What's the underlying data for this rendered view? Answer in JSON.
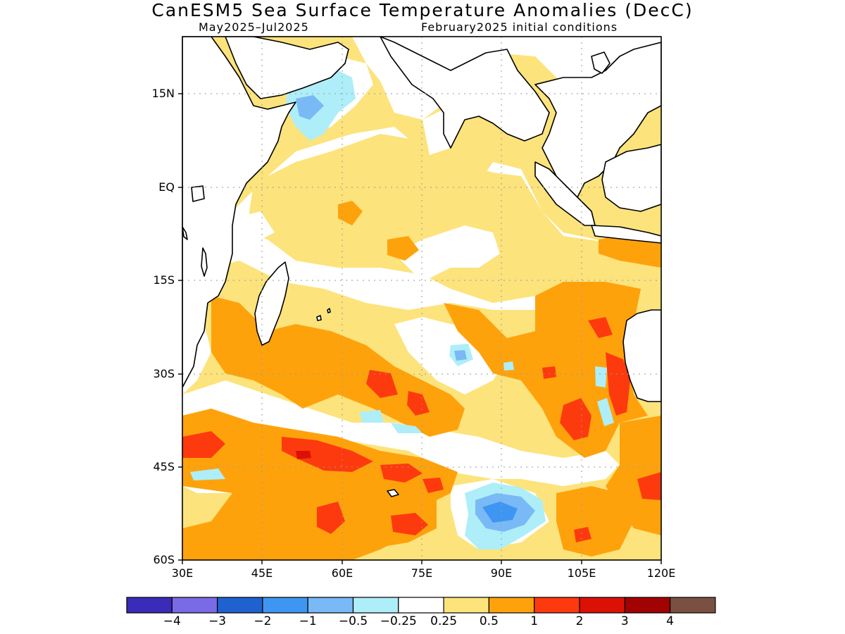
{
  "title": "CanESM5 Sea Surface Temperature Anomalies (DecC)",
  "subtitle_left": "May2025–Jul2025",
  "subtitle_right": "February2025 initial conditions",
  "lat_labels": [
    "15N",
    "EQ",
    "15S",
    "30S",
    "45S",
    "60S"
  ],
  "lon_labels": [
    "30E",
    "45E",
    "60E",
    "75E",
    "90E",
    "105E",
    "120E"
  ],
  "colorbar": {
    "colors": [
      "#3a2bb8",
      "#7b6ae6",
      "#1f62cf",
      "#3f96f2",
      "#79b9f6",
      "#aeeef8",
      "#ffffff",
      "#fce37c",
      "#fea20c",
      "#fd3a0e",
      "#db1105",
      "#a10202",
      "#7a5042"
    ],
    "labels": [
      "−4",
      "−3",
      "−2",
      "−1",
      "−0.5",
      "−0.25",
      "0.25",
      "0.5",
      "1",
      "2",
      "3",
      "4"
    ]
  },
  "colors": {
    "land": "#ffffff",
    "coast": "#000000",
    "grid": "#9a9a9a",
    "pos_weak": "#fce37c",
    "pos_mid": "#fea20c",
    "pos_strong": "#fd3a0e",
    "pos_stronger": "#db1105",
    "neg_weak": "#aeeef8",
    "neg_mid": "#79b9f6",
    "neg_strong": "#3f96f2"
  }
}
